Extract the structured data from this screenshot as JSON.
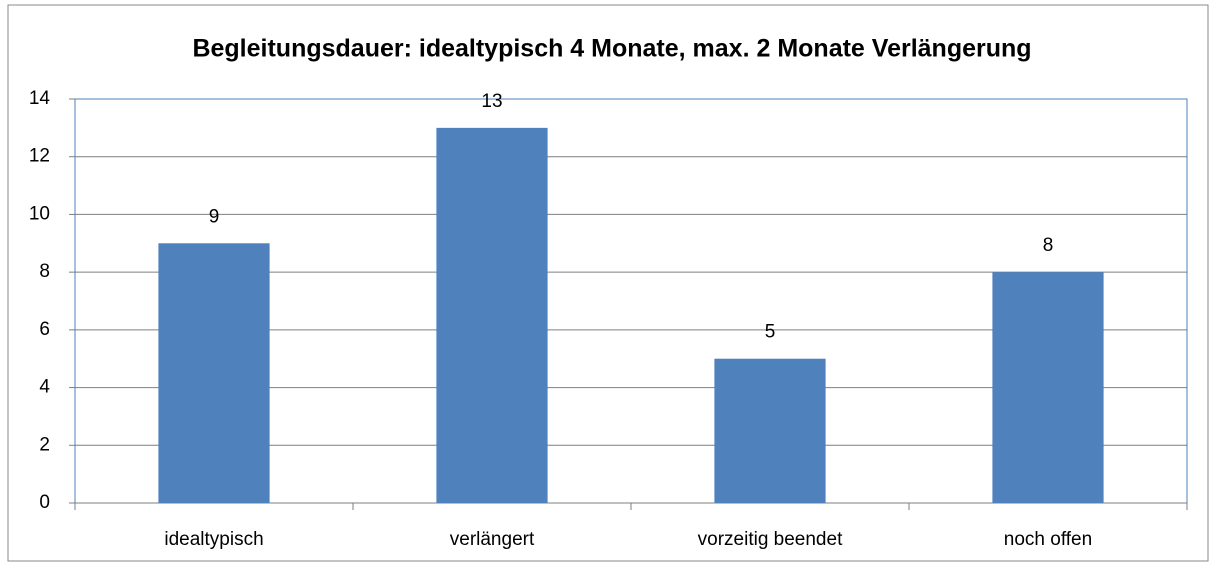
{
  "chart_data": {
    "type": "bar",
    "title": "Begleitungsdauer: idealtypisch 4 Monate, max. 2 Monate Verlängerung",
    "categories": [
      "idealtypisch",
      "verlängert",
      "vorzeitig beendet",
      "noch offen"
    ],
    "values": [
      9,
      13,
      5,
      8
    ],
    "color": "#4f81bd",
    "ylim": [
      0,
      14
    ],
    "yticks": [
      0,
      2,
      4,
      6,
      8,
      10,
      12,
      14
    ],
    "grid": true
  }
}
